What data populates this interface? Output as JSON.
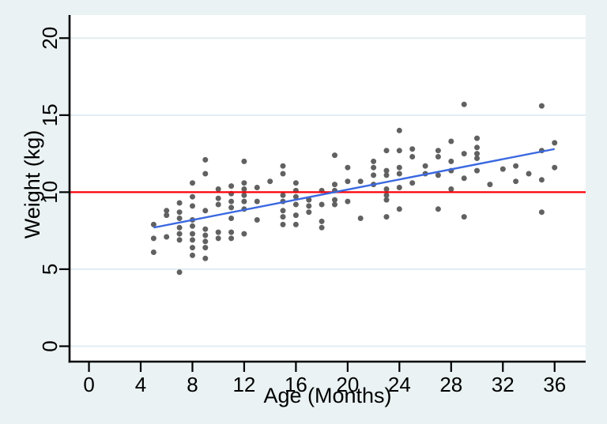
{
  "chart_data": {
    "type": "scatter",
    "title": "",
    "xlabel": "Age (Months)",
    "ylabel": "Weight (kg)",
    "xlim": [
      -1.5,
      38.4
    ],
    "ylim": [
      -1.0,
      21.5
    ],
    "xticks": [
      0,
      4,
      8,
      12,
      16,
      20,
      24,
      28,
      32,
      36
    ],
    "yticks": [
      0,
      5,
      10,
      15,
      20
    ],
    "grid": "horizontal-on",
    "legend": "none",
    "marker": {
      "shape": "circle",
      "radius": 3.5,
      "color": "#616161"
    },
    "fit_line": {
      "name": "linear-fit-line",
      "x1": 5,
      "y1": 7.7,
      "x2": 36,
      "y2": 12.8,
      "color": "#3a68e0",
      "width": 2.4
    },
    "ref_line": {
      "name": "reference-line-y10",
      "y": 10,
      "color": "#fb0007",
      "width": 2.2
    },
    "colors": {
      "background": "#eaf2f3",
      "plot_background": "#ffffff",
      "grid": "#e2ecf2",
      "axis": "#000000",
      "text": "#000000"
    },
    "points": [
      [
        5,
        7.9
      ],
      [
        5,
        7.0
      ],
      [
        5,
        6.1
      ],
      [
        6,
        8.8
      ],
      [
        6,
        8.5
      ],
      [
        6,
        7.1
      ],
      [
        7,
        9.3
      ],
      [
        7,
        8.7
      ],
      [
        7,
        8.3
      ],
      [
        7,
        7.7
      ],
      [
        7,
        7.3
      ],
      [
        7,
        6.9
      ],
      [
        7,
        4.8
      ],
      [
        8,
        10.6
      ],
      [
        8,
        9.7
      ],
      [
        8,
        9.1
      ],
      [
        8,
        8.2
      ],
      [
        8,
        7.8
      ],
      [
        8,
        7.3
      ],
      [
        8,
        6.9
      ],
      [
        8,
        6.4
      ],
      [
        8,
        5.9
      ],
      [
        9,
        12.1
      ],
      [
        9,
        11.2
      ],
      [
        9,
        8.8
      ],
      [
        9,
        7.6
      ],
      [
        9,
        7.2
      ],
      [
        9,
        6.8
      ],
      [
        9,
        6.4
      ],
      [
        9,
        5.7
      ],
      [
        10,
        10.2
      ],
      [
        10,
        9.6
      ],
      [
        10,
        9.2
      ],
      [
        10,
        7.4
      ],
      [
        10,
        7.0
      ],
      [
        11,
        10.4
      ],
      [
        11,
        9.9
      ],
      [
        11,
        9.4
      ],
      [
        11,
        9.0
      ],
      [
        11,
        8.3
      ],
      [
        11,
        7.4
      ],
      [
        11,
        7.0
      ],
      [
        12,
        12.0
      ],
      [
        12,
        10.6
      ],
      [
        12,
        10.2
      ],
      [
        12,
        9.8
      ],
      [
        12,
        9.4
      ],
      [
        12,
        8.9
      ],
      [
        12,
        7.3
      ],
      [
        13,
        10.3
      ],
      [
        13,
        9.4
      ],
      [
        13,
        8.2
      ],
      [
        14,
        10.7
      ],
      [
        15,
        11.7
      ],
      [
        15,
        11.2
      ],
      [
        15,
        9.8
      ],
      [
        15,
        9.4
      ],
      [
        15,
        8.8
      ],
      [
        15,
        8.4
      ],
      [
        15,
        7.9
      ],
      [
        16,
        10.6
      ],
      [
        16,
        10.1
      ],
      [
        16,
        9.7
      ],
      [
        16,
        9.2
      ],
      [
        16,
        8.5
      ],
      [
        16,
        7.9
      ],
      [
        17,
        9.5
      ],
      [
        17,
        9.1
      ],
      [
        17,
        8.7
      ],
      [
        18,
        10.1
      ],
      [
        18,
        9.2
      ],
      [
        18,
        8.1
      ],
      [
        18,
        7.7
      ],
      [
        19,
        12.4
      ],
      [
        19,
        10.5
      ],
      [
        19,
        10.1
      ],
      [
        19,
        9.5
      ],
      [
        19,
        9.2
      ],
      [
        20,
        11.6
      ],
      [
        20,
        10.7
      ],
      [
        20,
        9.4
      ],
      [
        21,
        10.7
      ],
      [
        21,
        8.3
      ],
      [
        22,
        12.0
      ],
      [
        22,
        11.6
      ],
      [
        22,
        11.1
      ],
      [
        22,
        10.5
      ],
      [
        23,
        12.7
      ],
      [
        23,
        11.4
      ],
      [
        23,
        11.1
      ],
      [
        23,
        10.2
      ],
      [
        23,
        9.8
      ],
      [
        23,
        9.5
      ],
      [
        23,
        8.4
      ],
      [
        24,
        14.0
      ],
      [
        24,
        12.7
      ],
      [
        24,
        11.6
      ],
      [
        24,
        11.2
      ],
      [
        24,
        10.3
      ],
      [
        24,
        8.9
      ],
      [
        25,
        12.8
      ],
      [
        25,
        12.3
      ],
      [
        25,
        10.6
      ],
      [
        26,
        11.7
      ],
      [
        26,
        11.2
      ],
      [
        27,
        12.7
      ],
      [
        27,
        12.3
      ],
      [
        27,
        11.1
      ],
      [
        27,
        8.9
      ],
      [
        28,
        13.3
      ],
      [
        28,
        12.0
      ],
      [
        28,
        11.4
      ],
      [
        28,
        10.2
      ],
      [
        29,
        15.7
      ],
      [
        29,
        12.5
      ],
      [
        29,
        10.9
      ],
      [
        29,
        8.4
      ],
      [
        30,
        13.5
      ],
      [
        30,
        12.9
      ],
      [
        30,
        12.5
      ],
      [
        30,
        12.2
      ],
      [
        30,
        11.4
      ],
      [
        31,
        10.5
      ],
      [
        32,
        11.5
      ],
      [
        33,
        11.7
      ],
      [
        33,
        10.7
      ],
      [
        34,
        11.2
      ],
      [
        35,
        15.6
      ],
      [
        35,
        12.7
      ],
      [
        35,
        10.8
      ],
      [
        35,
        8.7
      ],
      [
        36,
        13.2
      ],
      [
        36,
        11.6
      ]
    ]
  }
}
